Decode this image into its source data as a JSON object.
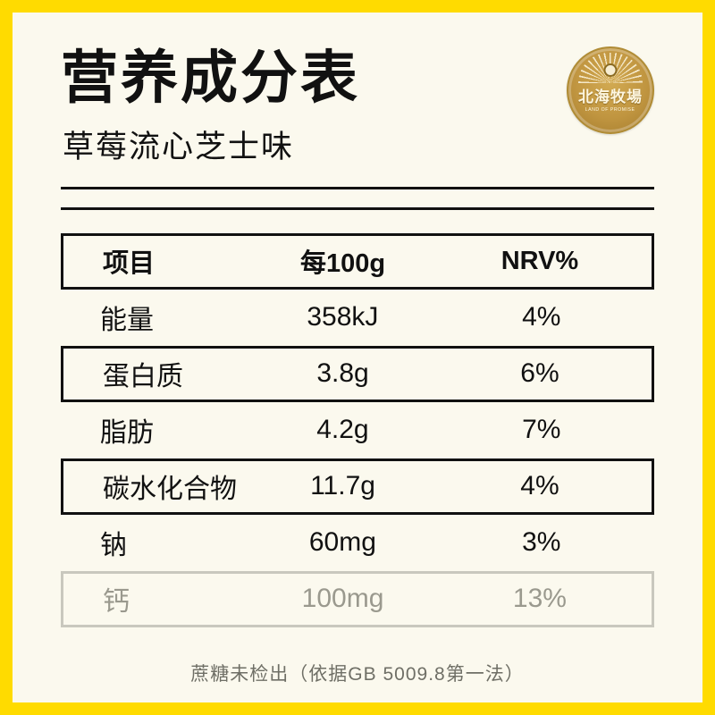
{
  "page": {
    "title": "营养成分表",
    "subtitle": "草莓流心芝士味",
    "footnote": "蔗糖未检出（依据GB 5009.8第一法）"
  },
  "logo": {
    "name": "北海牧場",
    "tagline": "LAND OF PROMISE"
  },
  "table": {
    "headers": [
      "项目",
      "每100g",
      "NRV%"
    ],
    "rows": [
      {
        "item": "能量",
        "per100g": "358kJ",
        "nrv": "4%"
      },
      {
        "item": "蛋白质",
        "per100g": "3.8g",
        "nrv": "6%"
      },
      {
        "item": "脂肪",
        "per100g": "4.2g",
        "nrv": "7%"
      },
      {
        "item": "碳水化合物",
        "per100g": "11.7g",
        "nrv": "4%"
      },
      {
        "item": "钠",
        "per100g": "60mg",
        "nrv": "3%"
      },
      {
        "item": "钙",
        "per100g": "100mg",
        "nrv": "13%"
      }
    ]
  },
  "colors": {
    "frame": "#FFDB00",
    "panel": "#FBF9EE",
    "ink": "#111111",
    "faded_text": "#9A998E",
    "faded_border": "#C9C8BE",
    "footnote": "#6F6F66",
    "gold": "#C09540"
  }
}
